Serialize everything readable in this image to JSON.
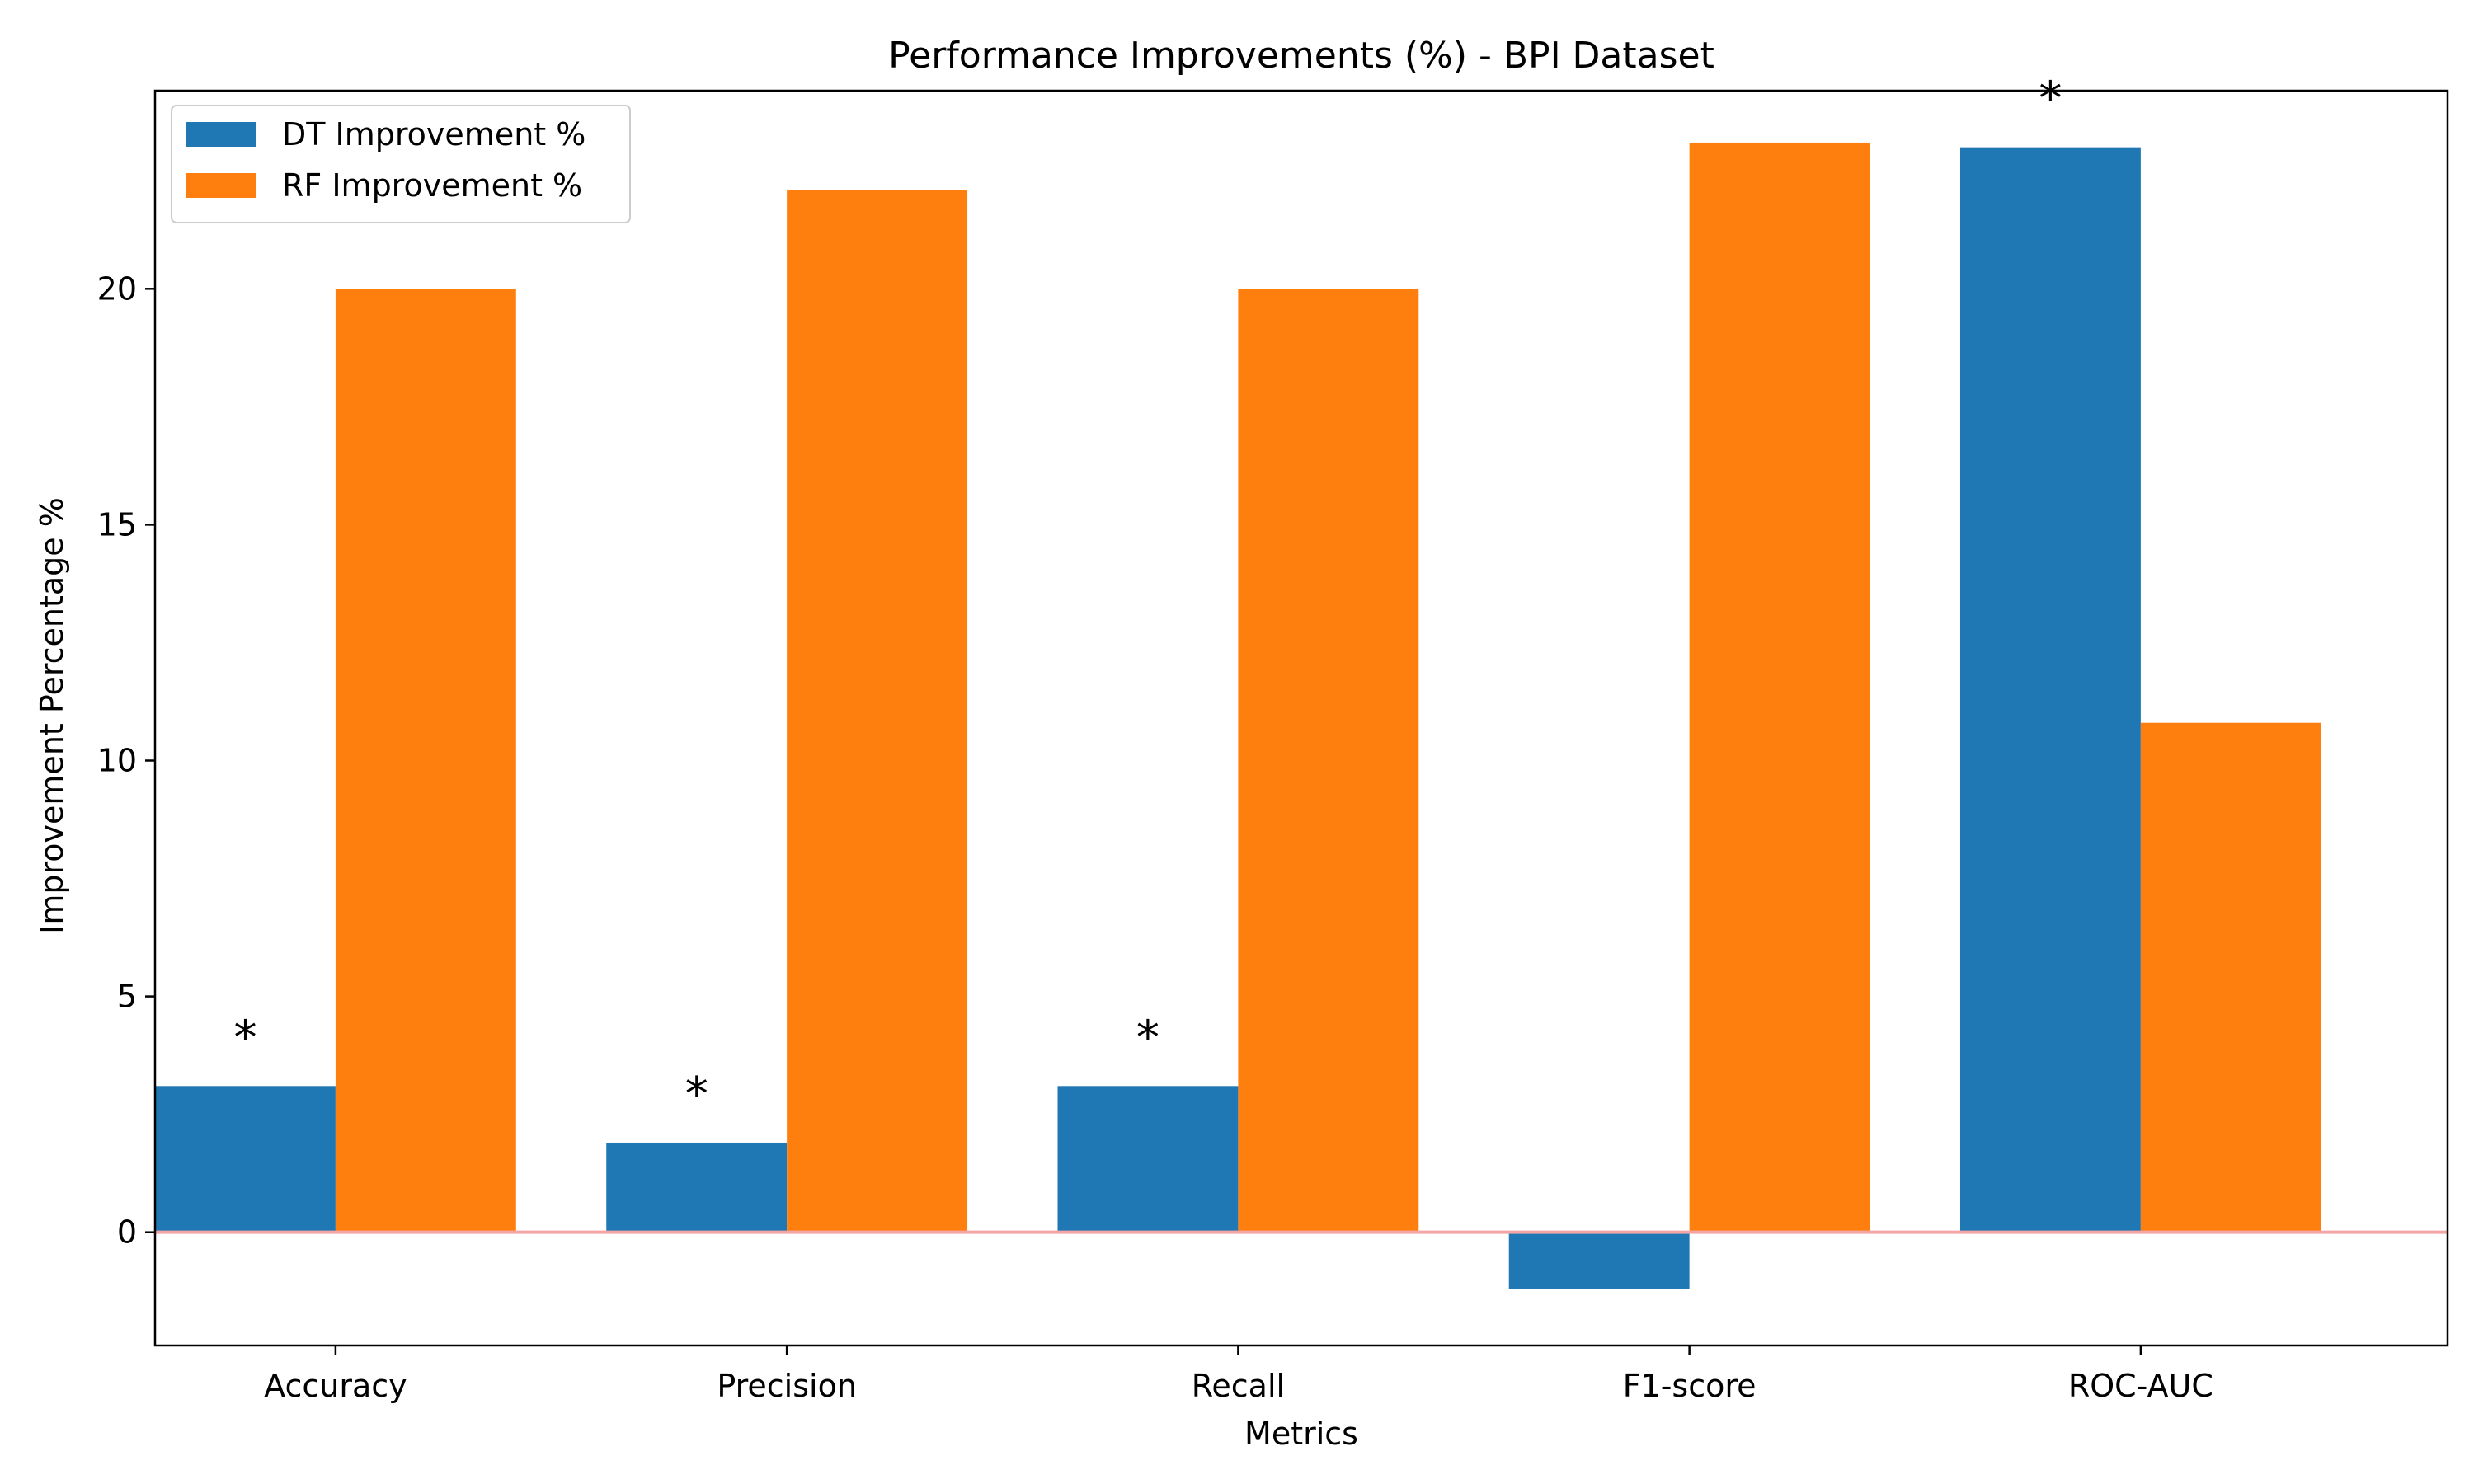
{
  "chart_data": {
    "type": "bar",
    "title": "Performance Improvements (%) - BPI Dataset",
    "xlabel": "Metrics",
    "ylabel": "Improvement Percentage %",
    "categories": [
      "Accuracy",
      "Precision",
      "Recall",
      "F1-score",
      "ROC-AUC"
    ],
    "series": [
      {
        "name": "DT Improvement %",
        "color": "#1f77b4",
        "values": [
          3.1,
          1.9,
          3.1,
          -1.2,
          23.0
        ]
      },
      {
        "name": "RF Improvement %",
        "color": "#ff7f0e",
        "values": [
          20.0,
          22.1,
          20.0,
          23.1,
          10.8
        ]
      }
    ],
    "significance": {
      "marker": "*",
      "series": "DT Improvement %",
      "categories": [
        "Accuracy",
        "Precision",
        "Recall",
        "ROC-AUC"
      ]
    },
    "ylim": [
      -2.4,
      24.2
    ],
    "yticks": [
      0,
      5,
      10,
      15,
      20
    ],
    "zero_line_color": "#f4a6a6",
    "grid": false,
    "legend_position": "top-left"
  }
}
